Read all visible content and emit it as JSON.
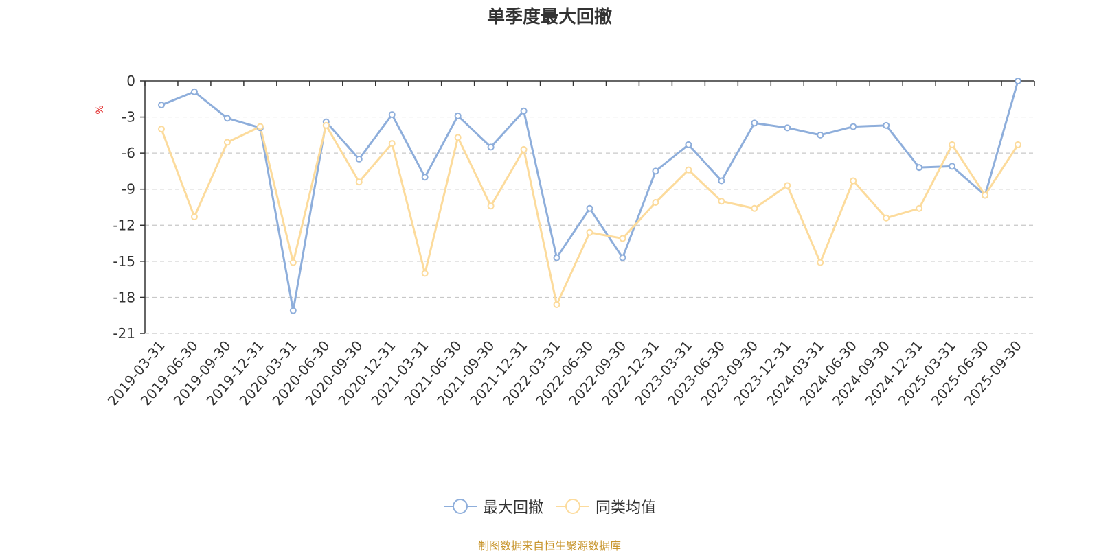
{
  "chart_data": {
    "type": "line",
    "title": "单季度最大回撤",
    "ylabel": "%",
    "ylim": [
      -21,
      0
    ],
    "yticks": [
      0,
      -3,
      -6,
      -9,
      -12,
      -15,
      -18,
      -21
    ],
    "grid": true,
    "legend_position": "bottom-center",
    "categories": [
      "2019-03-31",
      "2019-06-30",
      "2019-09-30",
      "2019-12-31",
      "2020-03-31",
      "2020-06-30",
      "2020-09-30",
      "2020-12-31",
      "2021-03-31",
      "2021-06-30",
      "2021-09-30",
      "2021-12-31",
      "2022-03-31",
      "2022-06-30",
      "2022-09-30",
      "2022-12-31",
      "2023-03-31",
      "2023-06-30",
      "2023-09-30",
      "2023-12-31",
      "2024-03-31",
      "2024-06-30",
      "2024-09-30",
      "2024-12-31",
      "2025-03-31",
      "2025-06-30",
      "2025-09-30"
    ],
    "series": [
      {
        "name": "最大回撤",
        "color": "#8eaedb",
        "values": [
          -2.0,
          -0.9,
          -3.1,
          -3.9,
          -19.1,
          -3.4,
          -6.5,
          -2.8,
          -8.0,
          -2.9,
          -5.5,
          -2.5,
          -14.7,
          -10.6,
          -14.7,
          -7.5,
          -5.3,
          -8.3,
          -3.5,
          -3.9,
          -4.5,
          -3.8,
          -3.7,
          -7.2,
          -7.1,
          -9.5,
          0.0
        ]
      },
      {
        "name": "同类均值",
        "color": "#fcdb9c",
        "values": [
          -4.0,
          -11.3,
          -5.1,
          -3.8,
          -15.1,
          -3.7,
          -8.4,
          -5.2,
          -16.0,
          -4.7,
          -10.4,
          -5.7,
          -18.6,
          -12.6,
          -13.1,
          -10.1,
          -7.4,
          -10.0,
          -10.6,
          -8.7,
          -15.1,
          -8.3,
          -11.4,
          -10.6,
          -5.3,
          -9.5,
          -5.3
        ]
      }
    ]
  },
  "source_note": "制图数据来自恒生聚源数据库"
}
